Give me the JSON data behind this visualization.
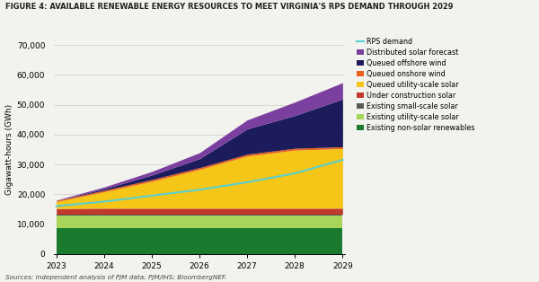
{
  "title": "FIGURE 4: AVAILABLE RENEWABLE ENERGY RESOURCES TO MEET VIRGINIA'S RPS DEMAND THROUGH 2029",
  "source": "Sources: independent analysis of PJM data; PJM/IHS; BloombergNEF.",
  "ylabel": "Gigawatt-hours (GWh)",
  "years": [
    2023,
    2024,
    2025,
    2026,
    2027,
    2028,
    2029
  ],
  "rps_demand": [
    16000,
    17500,
    19500,
    21500,
    24000,
    27000,
    31500
  ],
  "series": [
    {
      "label": "Existing non-solar renewables",
      "color": "#1a7a2e",
      "values": [
        8500,
        8500,
        8500,
        8500,
        8500,
        8500,
        8500
      ]
    },
    {
      "label": "Existing utility-scale solar",
      "color": "#a8d45a",
      "values": [
        4200,
        4200,
        4200,
        4200,
        4200,
        4200,
        4200
      ]
    },
    {
      "label": "Existing small-scale solar",
      "color": "#5a5a5a",
      "values": [
        600,
        600,
        600,
        600,
        600,
        600,
        600
      ]
    },
    {
      "label": "Under construction solar",
      "color": "#c0392b",
      "values": [
        1900,
        2000,
        2000,
        2000,
        2000,
        2000,
        2000
      ]
    },
    {
      "label": "Queued utility-scale solar",
      "color": "#f5c518",
      "values": [
        2300,
        5500,
        9000,
        13000,
        17500,
        19500,
        20000
      ]
    },
    {
      "label": "Queued onshore wind",
      "color": "#e8601c",
      "values": [
        400,
        500,
        600,
        600,
        600,
        600,
        600
      ]
    },
    {
      "label": "Queued offshore wind",
      "color": "#1c1c5c",
      "values": [
        0,
        500,
        1500,
        3000,
        8500,
        11000,
        16000
      ]
    },
    {
      "label": "Distributed solar forecast",
      "color": "#7b3fa0",
      "values": [
        100,
        600,
        1200,
        2000,
        3000,
        4500,
        5500
      ]
    }
  ],
  "ylim": [
    0,
    70000
  ],
  "yticks": [
    0,
    10000,
    20000,
    30000,
    40000,
    50000,
    60000,
    70000
  ],
  "background_color": "#f2f2ee",
  "rps_color": "#5acfcf",
  "legend_fontsize": 5.8,
  "title_fontsize": 6.0,
  "axis_label_fontsize": 6.5,
  "tick_fontsize": 6.5
}
